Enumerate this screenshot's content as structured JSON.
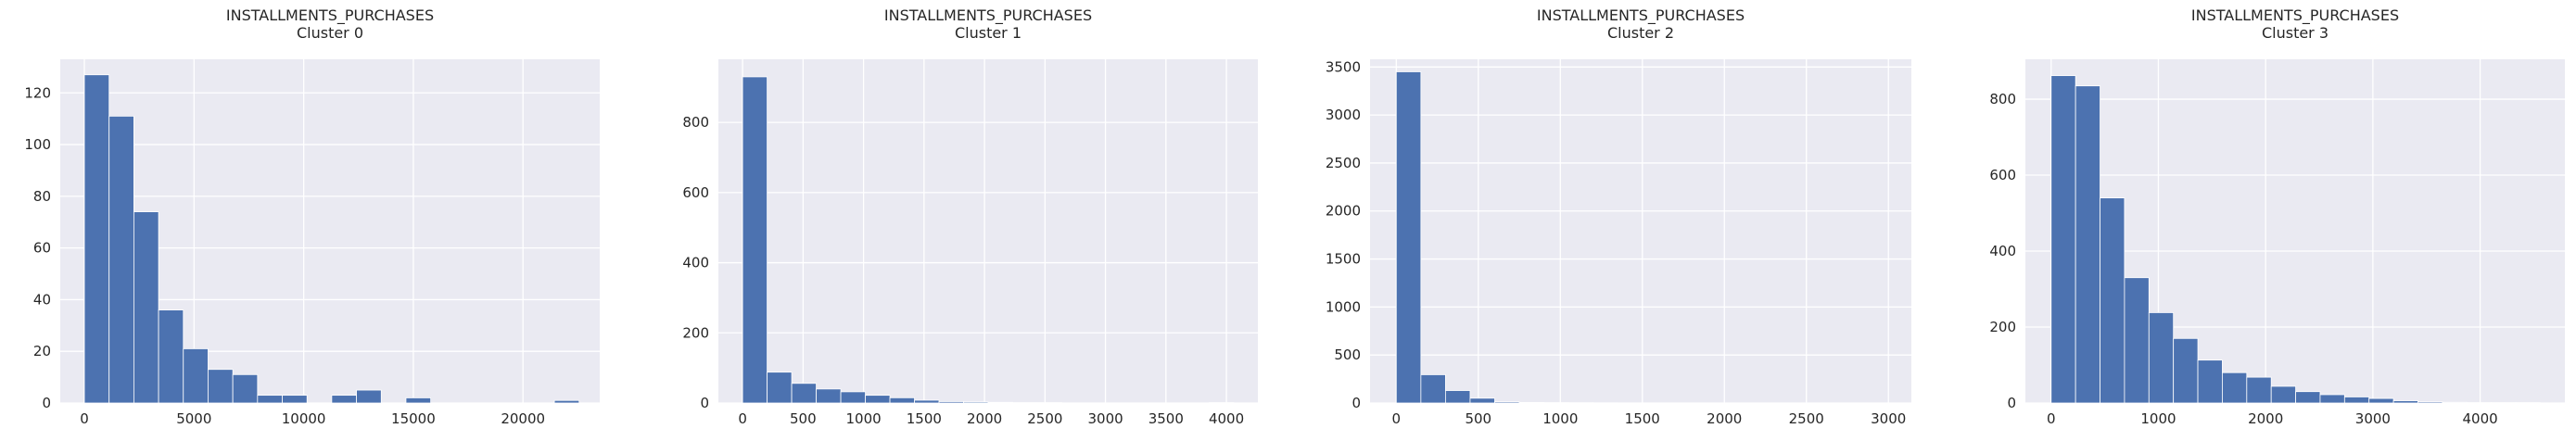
{
  "chart_data": [
    {
      "type": "bar",
      "title": "INSTALLMENTS_PURCHASES",
      "subtitle": "Cluster 0",
      "bar_color": "#4c72b0",
      "background": "#eaeaf2",
      "xlim": [
        -1100,
        23500
      ],
      "ylim": [
        0,
        133
      ],
      "xticks": [
        0,
        5000,
        10000,
        15000,
        20000
      ],
      "yticks": [
        0,
        20,
        40,
        60,
        80,
        100,
        120
      ],
      "bin_start": 0,
      "bin_width": 1128,
      "values": [
        127,
        111,
        74,
        36,
        21,
        13,
        11,
        3,
        3,
        0,
        3,
        5,
        0,
        2,
        0,
        0,
        0,
        0,
        0,
        1
      ]
    },
    {
      "type": "bar",
      "title": "INSTALLMENTS_PURCHASES",
      "subtitle": "Cluster 1",
      "bar_color": "#4c72b0",
      "background": "#eaeaf2",
      "xlim": [
        -200,
        4260
      ],
      "ylim": [
        0,
        980
      ],
      "xticks": [
        0,
        500,
        1000,
        1500,
        2000,
        2500,
        3000,
        3500,
        4000
      ],
      "yticks": [
        0,
        200,
        400,
        600,
        800
      ],
      "bin_start": 0,
      "bin_width": 203,
      "values": [
        930,
        88,
        56,
        40,
        32,
        22,
        15,
        8,
        4,
        3,
        2,
        1,
        1,
        0,
        0,
        0,
        0,
        0,
        0,
        1
      ]
    },
    {
      "type": "bar",
      "title": "INSTALLMENTS_PURCHASES",
      "subtitle": "Cluster 2",
      "bar_color": "#4c72b0",
      "background": "#eaeaf2",
      "xlim": [
        -160,
        3140
      ],
      "ylim": [
        0,
        3580
      ],
      "xticks": [
        0,
        500,
        1000,
        1500,
        2000,
        2500,
        3000
      ],
      "yticks": [
        0,
        500,
        1000,
        1500,
        2000,
        2500,
        3000,
        3500
      ],
      "bin_start": 0,
      "bin_width": 150,
      "values": [
        3450,
        295,
        130,
        50,
        12,
        6,
        4,
        3,
        2,
        1,
        1,
        1,
        0,
        0,
        0,
        0,
        0,
        0,
        0,
        1
      ]
    },
    {
      "type": "bar",
      "title": "INSTALLMENTS_PURCHASES",
      "subtitle": "Cluster 3",
      "bar_color": "#4c72b0",
      "background": "#eaeaf2",
      "xlim": [
        -240,
        4790
      ],
      "ylim": [
        0,
        905
      ],
      "xticks": [
        0,
        1000,
        2000,
        3000,
        4000
      ],
      "yticks": [
        0,
        200,
        400,
        600,
        800
      ],
      "bin_start": 0,
      "bin_width": 228,
      "values": [
        862,
        835,
        540,
        330,
        238,
        170,
        113,
        80,
        68,
        44,
        30,
        22,
        16,
        12,
        6,
        3,
        2,
        1,
        1,
        1
      ]
    }
  ]
}
